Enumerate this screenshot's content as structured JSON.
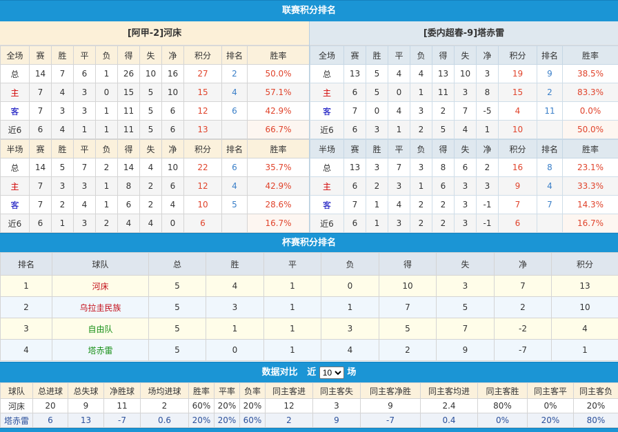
{
  "league": {
    "title": "联赛积分排名",
    "teams": [
      {
        "name": "[阿甲-2]河床",
        "full": {
          "header": [
            "全场",
            "赛",
            "胜",
            "平",
            "负",
            "得",
            "失",
            "净",
            "积分",
            "排名",
            "胜率"
          ],
          "rows": [
            [
              "总",
              "14",
              "7",
              "6",
              "1",
              "26",
              "10",
              "16",
              "27",
              "2",
              "50.0%"
            ],
            [
              "主",
              "7",
              "4",
              "3",
              "0",
              "15",
              "5",
              "10",
              "15",
              "4",
              "57.1%"
            ],
            [
              "客",
              "7",
              "3",
              "3",
              "1",
              "11",
              "5",
              "6",
              "12",
              "6",
              "42.9%"
            ],
            [
              "近6",
              "6",
              "4",
              "1",
              "1",
              "11",
              "5",
              "6",
              "13",
              "",
              "66.7%"
            ]
          ]
        },
        "half": {
          "header": [
            "半场",
            "赛",
            "胜",
            "平",
            "负",
            "得",
            "失",
            "净",
            "积分",
            "排名",
            "胜率"
          ],
          "rows": [
            [
              "总",
              "14",
              "5",
              "7",
              "2",
              "14",
              "4",
              "10",
              "22",
              "6",
              "35.7%"
            ],
            [
              "主",
              "7",
              "3",
              "3",
              "1",
              "8",
              "2",
              "6",
              "12",
              "4",
              "42.9%"
            ],
            [
              "客",
              "7",
              "2",
              "4",
              "1",
              "6",
              "2",
              "4",
              "10",
              "5",
              "28.6%"
            ],
            [
              "近6",
              "6",
              "1",
              "3",
              "2",
              "4",
              "4",
              "0",
              "6",
              "",
              "16.7%"
            ]
          ]
        }
      },
      {
        "name": "[委内超春-9]塔赤雷",
        "full": {
          "header": [
            "全场",
            "赛",
            "胜",
            "平",
            "负",
            "得",
            "失",
            "净",
            "积分",
            "排名",
            "胜率"
          ],
          "rows": [
            [
              "总",
              "13",
              "5",
              "4",
              "4",
              "13",
              "10",
              "3",
              "19",
              "9",
              "38.5%"
            ],
            [
              "主",
              "6",
              "5",
              "0",
              "1",
              "11",
              "3",
              "8",
              "15",
              "2",
              "83.3%"
            ],
            [
              "客",
              "7",
              "0",
              "4",
              "3",
              "2",
              "7",
              "-5",
              "4",
              "11",
              "0.0%"
            ],
            [
              "近6",
              "6",
              "3",
              "1",
              "2",
              "5",
              "4",
              "1",
              "10",
              "",
              "50.0%"
            ]
          ]
        },
        "half": {
          "header": [
            "半场",
            "赛",
            "胜",
            "平",
            "负",
            "得",
            "失",
            "净",
            "积分",
            "排名",
            "胜率"
          ],
          "rows": [
            [
              "总",
              "13",
              "3",
              "7",
              "3",
              "8",
              "6",
              "2",
              "16",
              "8",
              "23.1%"
            ],
            [
              "主",
              "6",
              "2",
              "3",
              "1",
              "6",
              "3",
              "3",
              "9",
              "4",
              "33.3%"
            ],
            [
              "客",
              "7",
              "1",
              "4",
              "2",
              "2",
              "3",
              "-1",
              "7",
              "7",
              "14.3%"
            ],
            [
              "近6",
              "6",
              "1",
              "3",
              "2",
              "2",
              "3",
              "-1",
              "6",
              "",
              "16.7%"
            ]
          ]
        }
      }
    ]
  },
  "cup": {
    "title": "杯赛积分排名",
    "header": [
      "排名",
      "球队",
      "总",
      "胜",
      "平",
      "负",
      "得",
      "失",
      "净",
      "积分"
    ],
    "rows": [
      [
        "1",
        "河床",
        "5",
        "4",
        "1",
        "0",
        "10",
        "3",
        "7",
        "13"
      ],
      [
        "2",
        "乌拉圭民族",
        "5",
        "3",
        "1",
        "1",
        "7",
        "5",
        "2",
        "10"
      ],
      [
        "3",
        "自由队",
        "5",
        "1",
        "1",
        "3",
        "5",
        "7",
        "-2",
        "4"
      ],
      [
        "4",
        "塔赤雷",
        "5",
        "0",
        "1",
        "4",
        "2",
        "9",
        "-7",
        "1"
      ]
    ],
    "team_colors": [
      "#c3101a",
      "#c3101a",
      "#189018",
      "#189018"
    ]
  },
  "compare": {
    "title": "数据对比",
    "recent_label": "近",
    "games_select": "10",
    "games_unit": "场",
    "header": [
      "球队",
      "总进球",
      "总失球",
      "净胜球",
      "场均进球",
      "胜率",
      "平率",
      "负率",
      "同主客进",
      "同主客失",
      "同主客净胜",
      "同主客均进",
      "同主客胜",
      "同主客平",
      "同主客负"
    ],
    "rows": [
      [
        "河床",
        "20",
        "9",
        "11",
        "2",
        "60%",
        "20%",
        "20%",
        "12",
        "3",
        "9",
        "2.4",
        "80%",
        "0%",
        "20%"
      ],
      [
        "塔赤雷",
        "6",
        "13",
        "-7",
        "0.6",
        "20%",
        "20%",
        "60%",
        "2",
        "9",
        "-7",
        "0.4",
        "0%",
        "20%",
        "80%"
      ]
    ]
  },
  "colors": {
    "accent": "#1b95d5",
    "points": "#e0432b",
    "rank": "#3a7fc8",
    "home": "#d10000",
    "away": "#0000bb"
  }
}
